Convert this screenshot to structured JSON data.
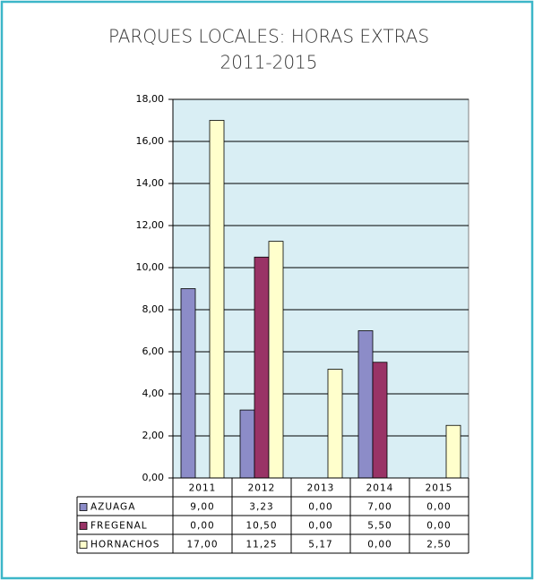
{
  "chart_data": {
    "type": "bar",
    "title": "PARQUES LOCALES: HORAS EXTRAS",
    "subtitle": "2011-2015",
    "categories": [
      "2011",
      "2012",
      "2013",
      "2014",
      "2015"
    ],
    "series": [
      {
        "name": "AZUAGA",
        "color": "#8c8cc8",
        "values": [
          9,
          3.23,
          0,
          7,
          0
        ],
        "value_labels": [
          "9,00",
          "3,23",
          "0,00",
          "7,00",
          "0,00"
        ]
      },
      {
        "name": "FREGENAL",
        "color": "#993366",
        "values": [
          0,
          10.5,
          0,
          5.5,
          0
        ],
        "value_labels": [
          "0,00",
          "10,50",
          "0,00",
          "5,50",
          "0,00"
        ]
      },
      {
        "name": "HORNACHOS",
        "color": "#ffffcc",
        "values": [
          17,
          11.25,
          5.17,
          0,
          2.5
        ],
        "value_labels": [
          "17,00",
          "11,25",
          "5,17",
          "0,00",
          "2,50"
        ]
      }
    ],
    "ylim": [
      0,
      18
    ],
    "yticks": [
      {
        "value": 0,
        "label": "0,00"
      },
      {
        "value": 2,
        "label": "2,00"
      },
      {
        "value": 4,
        "label": "4,00"
      },
      {
        "value": 6,
        "label": "6,00"
      },
      {
        "value": 8,
        "label": "8,00"
      },
      {
        "value": 10,
        "label": "10,00"
      },
      {
        "value": 12,
        "label": "12,00"
      },
      {
        "value": 14,
        "label": "14,00"
      },
      {
        "value": 16,
        "label": "16,00"
      },
      {
        "value": 18,
        "label": "18,00"
      }
    ],
    "grid": true,
    "plot_background": "#d9eef4"
  }
}
